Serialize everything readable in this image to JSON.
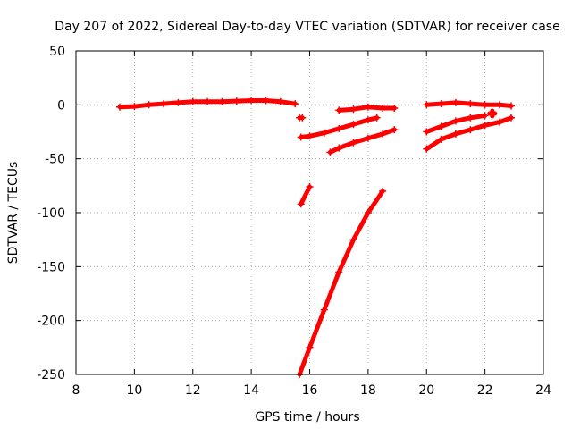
{
  "chart_data": {
    "type": "scatter",
    "title": "Day 207 of 2022, Sidereal Day-to-day VTEC variation (SDTVAR) for receiver case",
    "xlabel": "GPS time / hours",
    "ylabel": "SDTVAR / TECUs",
    "xlim": [
      8,
      24
    ],
    "ylim": [
      -250,
      50
    ],
    "xticks": [
      8,
      10,
      12,
      14,
      16,
      18,
      20,
      22,
      24
    ],
    "yticks": [
      50,
      0,
      -50,
      -100,
      -150,
      -200,
      -250
    ],
    "grid": true,
    "marker_color": "#ff0000",
    "series": [
      {
        "x": [
          9.5,
          10.0,
          10.5,
          11.0,
          11.5,
          12.0,
          12.5,
          13.0,
          13.5,
          14.0,
          14.5,
          15.0,
          15.5
        ],
        "y": [
          -2,
          -1.5,
          0,
          1,
          2,
          3,
          3,
          3,
          3.5,
          4,
          4,
          3,
          1
        ]
      },
      {
        "x": [
          15.65,
          15.75
        ],
        "y": [
          -12,
          -12
        ]
      },
      {
        "x": [
          15.7,
          16.0
        ],
        "y": [
          -92,
          -76
        ]
      },
      {
        "x": [
          15.7,
          16.0,
          16.5,
          17.0,
          17.5,
          18.0,
          18.3
        ],
        "y": [
          -30,
          -29,
          -26,
          -22,
          -18,
          -14,
          -12
        ]
      },
      {
        "x": [
          15.65,
          16.0,
          16.5,
          17.0,
          17.5,
          18.0,
          18.5
        ],
        "y": [
          -250,
          -225,
          -190,
          -155,
          -125,
          -100,
          -80
        ]
      },
      {
        "x": [
          16.7,
          17.0,
          17.5,
          18.0,
          18.5,
          18.9
        ],
        "y": [
          -44,
          -40,
          -35,
          -31,
          -27,
          -23
        ]
      },
      {
        "x": [
          17.0,
          17.5,
          18.0,
          18.5,
          18.9
        ],
        "y": [
          -5,
          -4,
          -2,
          -3,
          -3
        ]
      },
      {
        "x": [
          20.0,
          20.5,
          21.0,
          21.5,
          22.0,
          22.5,
          22.9
        ],
        "y": [
          0,
          1,
          2,
          1,
          0,
          0,
          -1
        ]
      },
      {
        "x": [
          20.0,
          20.5,
          21.0,
          21.5,
          22.0
        ],
        "y": [
          -25,
          -20,
          -15,
          -12,
          -10
        ]
      },
      {
        "x": [
          20.0,
          20.5,
          21.0,
          21.5,
          22.0,
          22.5,
          22.9
        ],
        "y": [
          -41,
          -32,
          -27,
          -23,
          -19,
          -16,
          -12
        ]
      },
      {
        "x": [
          22.25,
          22.3
        ],
        "y": [
          -8,
          -8
        ]
      }
    ]
  }
}
